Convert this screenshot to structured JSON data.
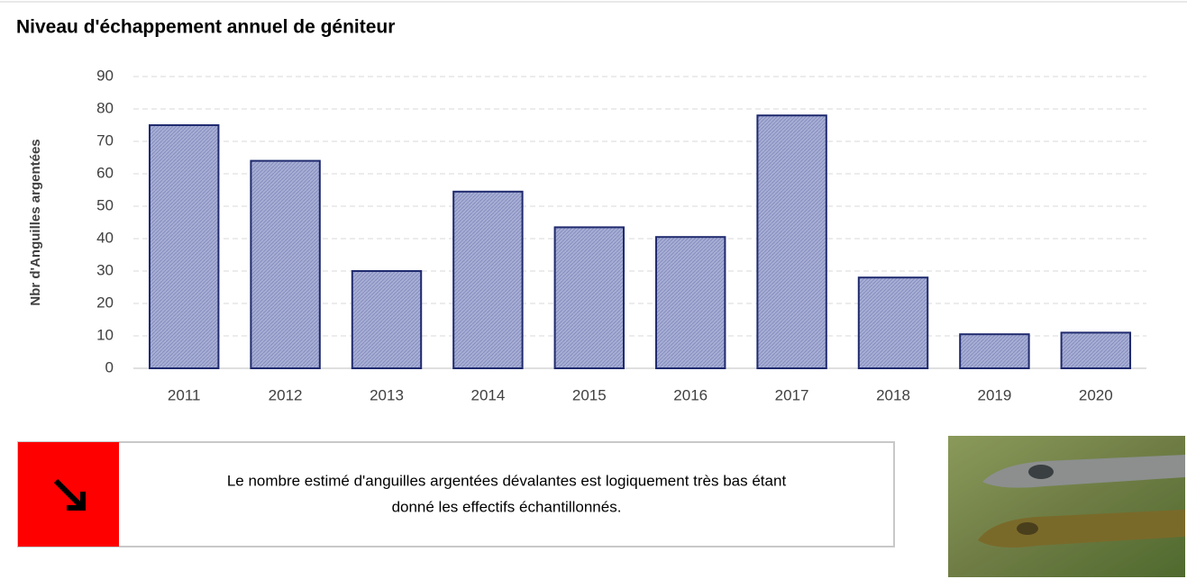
{
  "chart_data": {
    "type": "bar",
    "title": "Niveau d'échappement annuel de géniteur",
    "y_label": "Nbr d'Anguilles argentées",
    "categories": [
      "2011",
      "2012",
      "2013",
      "2014",
      "2015",
      "2016",
      "2017",
      "2018",
      "2019",
      "2020"
    ],
    "values": [
      75,
      64,
      30,
      54.5,
      43.5,
      40.5,
      78,
      28,
      10.5,
      11
    ],
    "color": "#9aa2cc",
    "edge_color": "#1f2a6e",
    "ylim": [
      0,
      90
    ],
    "yticks": [
      0,
      10,
      20,
      30,
      40,
      50,
      60,
      70,
      80,
      90
    ],
    "grid": true
  },
  "note": [
    "Le nombre estimé d'anguilles argentées dévalantes est logiquement très bas étant",
    "donné les effectifs échantillonnés."
  ]
}
